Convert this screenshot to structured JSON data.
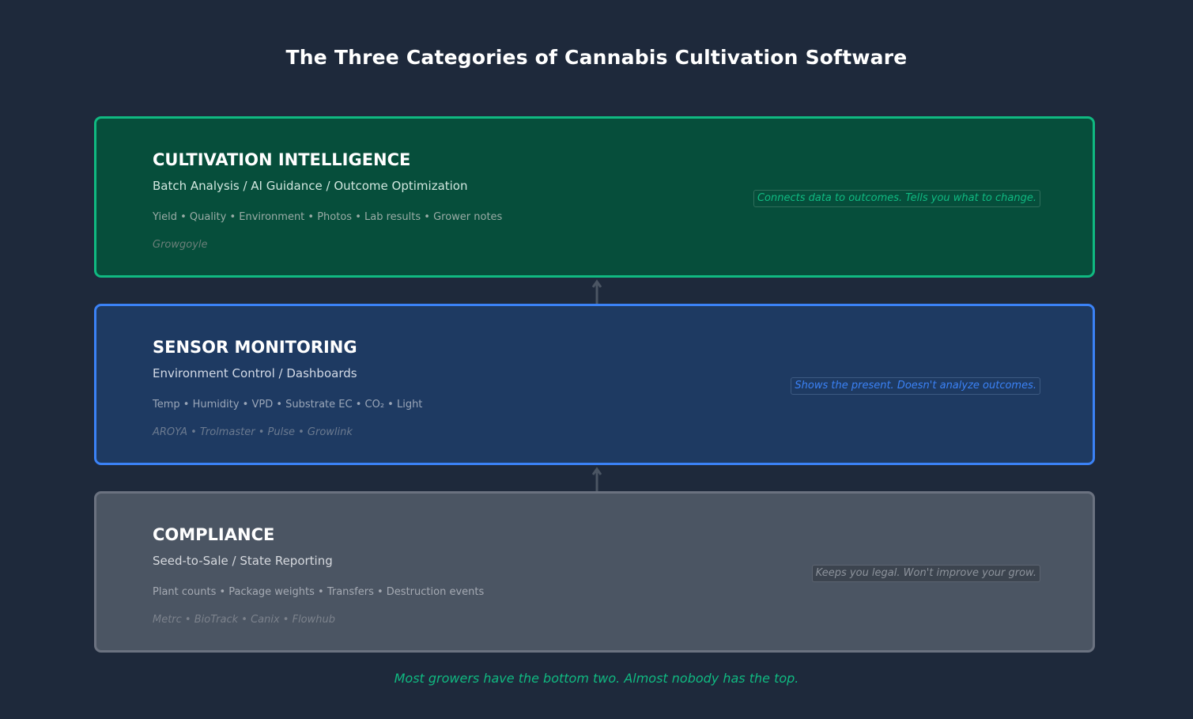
{
  "title": "The Three Categories of Cannabis Cultivation Software",
  "tiers": [
    {
      "title": "CULTIVATION INTELLIGENCE",
      "subtitle": "Batch Analysis / AI Guidance / Outcome Optimization",
      "items": "Yield  •  Quality  •  Environment  •  Photos  •  Lab results  •  Grower notes",
      "vendors": "Growgoyle",
      "note": "Connects data to outcomes. Tells you what to change.",
      "colors": {
        "fill": "#064e3b",
        "border": "#10b981",
        "subtitle": "#d1e7df",
        "items": "#9aaca6",
        "vendors": "#6b7f79",
        "note_text": "#10b981",
        "note_bg": "#064e3b",
        "note_border": "#2f6e5b"
      }
    },
    {
      "title": "SENSOR MONITORING",
      "subtitle": "Environment Control / Dashboards",
      "items": "Temp  •  Humidity  •  VPD  •  Substrate EC  •  CO₂  •  Light",
      "vendors": "AROYA  •  Trolmaster  •  Pulse  •  Growlink",
      "note": "Shows the present. Doesn't analyze outcomes.",
      "colors": {
        "fill": "#1e3a62",
        "border": "#3b82f6",
        "subtitle": "#d3dae6",
        "items": "#9aa6b8",
        "vendors": "#6b7a90",
        "note_text": "#3b82f6",
        "note_bg": "#1e3a62",
        "note_border": "#3d5a82"
      }
    },
    {
      "title": "COMPLIANCE",
      "subtitle": "Seed-to-Sale / State Reporting",
      "items": "Plant counts  •  Package weights  •  Transfers  •  Destruction events",
      "vendors": "Metrc  •  BioTrack  •  Canix  •  Flowhub",
      "note": "Keeps you legal. Won't improve your grow.",
      "colors": {
        "fill": "#4b5563",
        "border": "#6b7280",
        "subtitle": "#d6d9de",
        "items": "#a5aab3",
        "vendors": "#7c828c",
        "note_text": "#8d939c",
        "note_bg": "#3c444f",
        "note_border": "#5c6470"
      }
    }
  ],
  "arrow_color": "#4b5563",
  "footer": "Most growers have the bottom two. Almost nobody has the top.",
  "footer_color": "#10b981"
}
